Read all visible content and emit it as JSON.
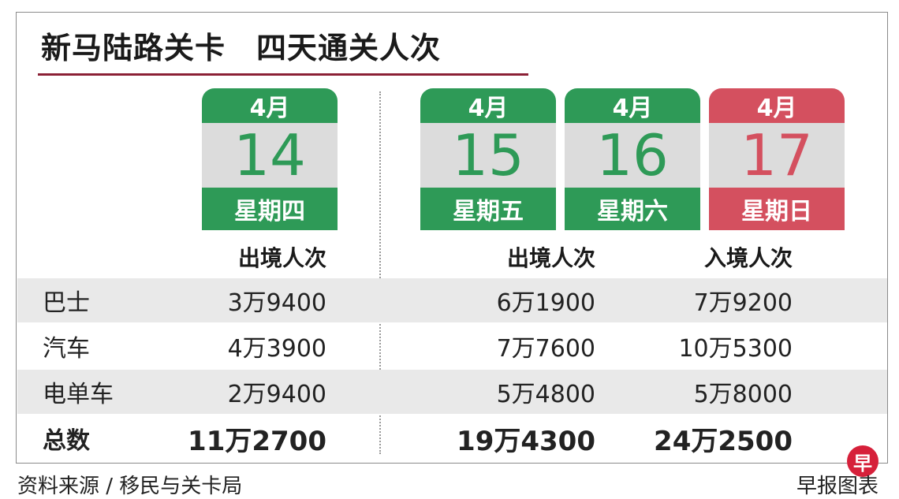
{
  "title": "新马陆路关卡　四天通关人次",
  "colors": {
    "green": "#2e9a57",
    "red": "#d4505f",
    "title_underline": "#8b2035",
    "row_shade": "#e9e9e9"
  },
  "dates": [
    {
      "month": "4月",
      "day": "14",
      "weekday": "星期四",
      "color": "green"
    },
    {
      "month": "4月",
      "day": "15",
      "weekday": "星期五",
      "color": "green"
    },
    {
      "month": "4月",
      "day": "16",
      "weekday": "星期六",
      "color": "green"
    },
    {
      "month": "4月",
      "day": "17",
      "weekday": "星期日",
      "color": "red"
    }
  ],
  "chart_data": {
    "type": "table",
    "title": "新马陆路关卡　四天通关人次",
    "column_groups": [
      {
        "dates": [
          "4月14 星期四"
        ],
        "columns": [
          "出境人次"
        ]
      },
      {
        "dates": [
          "4月15 星期五",
          "4月16 星期六",
          "4月17 星期日"
        ],
        "columns": [
          "出境人次",
          "入境人次"
        ]
      }
    ],
    "columns": [
      "出境人次",
      "出境人次",
      "入境人次"
    ],
    "rows": [
      {
        "label": "巴士",
        "values": [
          "3万9400",
          "6万1900",
          "7万9200"
        ]
      },
      {
        "label": "汽车",
        "values": [
          "4万3900",
          "7万7600",
          "10万5300"
        ]
      },
      {
        "label": "电单车",
        "values": [
          "2万9400",
          "5万4800",
          "5万8000"
        ]
      },
      {
        "label": "总数",
        "values": [
          "11万2700",
          "19万4300",
          "24万2500"
        ]
      }
    ]
  },
  "footer": {
    "source": "资料来源 / 移民与关卡局",
    "credit": "早报图表",
    "logo_char": "早"
  }
}
